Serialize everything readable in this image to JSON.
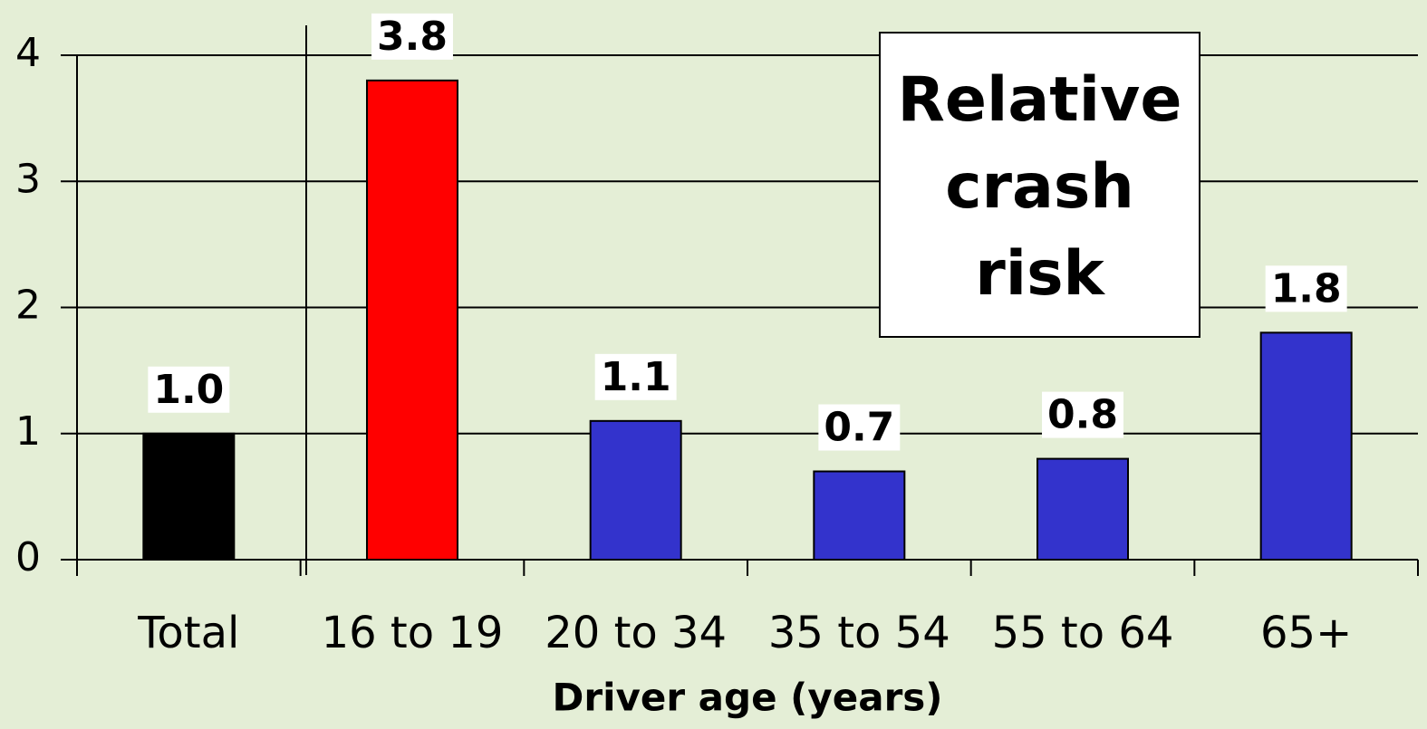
{
  "chart_data": {
    "type": "bar",
    "categories": [
      "Total",
      "16 to 19",
      "20 to 34",
      "35 to 54",
      "55 to 64",
      "65+"
    ],
    "values": [
      1.0,
      3.8,
      1.1,
      0.7,
      0.8,
      1.8
    ],
    "value_labels": [
      "1.0",
      "3.8",
      "1.1",
      "0.7",
      "0.8",
      "1.8"
    ],
    "colors": [
      "#000000",
      "#ff0000",
      "#3333cc",
      "#3333cc",
      "#3333cc",
      "#3333cc"
    ],
    "xlabel": "Driver age (years)",
    "annotation": "Relative crash risk",
    "ylim": [
      0,
      4
    ],
    "yticks": [
      0,
      1,
      2,
      3,
      4
    ],
    "grid": true
  }
}
